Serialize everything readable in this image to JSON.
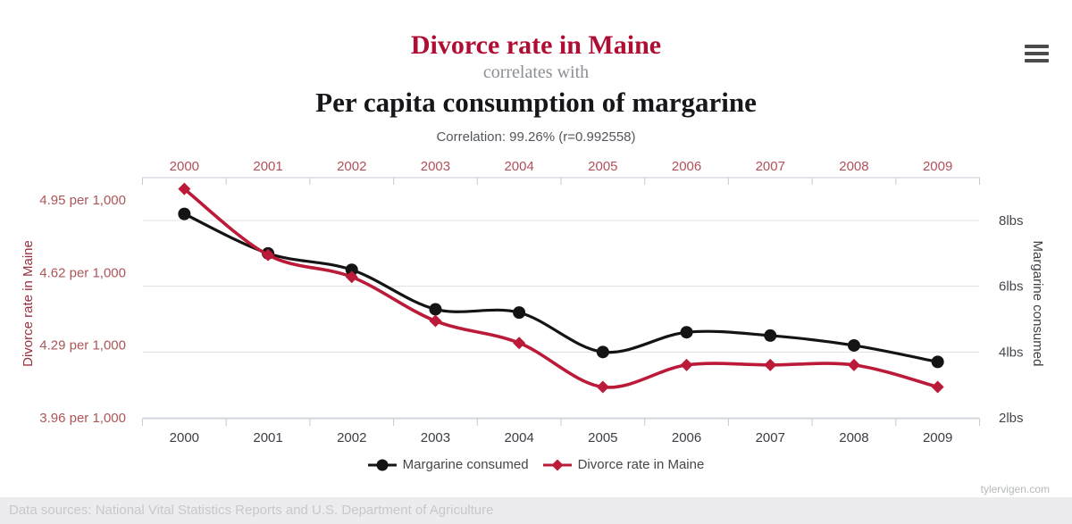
{
  "header": {
    "title": "Divorce rate in Maine",
    "connector": "correlates with",
    "subtitle": "Per capita consumption of margarine",
    "correlation": "Correlation: 99.26% (r=0.992558)"
  },
  "colors": {
    "title_red": "#b00d33",
    "series_black": "#141414",
    "series_red": "#bb1a39",
    "top_axis_label": "#b25059",
    "left_tick_label": "#ac5658",
    "left_axis_title": "#9a3140",
    "right_tick_label": "#43464b",
    "right_axis_title": "#3d4045",
    "bottom_axis_label": "#3b3e44",
    "grid_line": "#dce0e3",
    "axis_line": "#c4cdd4"
  },
  "chart_data": {
    "type": "line",
    "categories": [
      "2000",
      "2001",
      "2002",
      "2003",
      "2004",
      "2005",
      "2006",
      "2007",
      "2008",
      "2009"
    ],
    "series": [
      {
        "name": "Margarine consumed",
        "axis": "right",
        "marker": "circle",
        "color": "#141414",
        "unit": "lbs",
        "values": [
          8.2,
          7,
          6.5,
          5.3,
          5.2,
          4,
          4.6,
          4.5,
          4.2,
          3.7
        ]
      },
      {
        "name": "Divorce rate in Maine",
        "axis": "left",
        "marker": "diamond",
        "color": "#bb1a39",
        "unit": "per 1,000",
        "values": [
          5,
          4.7,
          4.6,
          4.4,
          4.3,
          4.1,
          4.2,
          4.2,
          4.2,
          4.1
        ]
      }
    ],
    "left_axis": {
      "label": "Divorce rate in Maine",
      "tick_labels": [
        "4.95 per 1,000",
        "4.62 per 1,000",
        "4.29 per 1,000",
        "3.96 per 1,000"
      ],
      "tick_values": [
        4.95,
        4.62,
        4.29,
        3.96
      ]
    },
    "right_axis": {
      "label": "Margarine consumed",
      "tick_labels": [
        "8lbs",
        "6lbs",
        "4lbs",
        "2lbs"
      ],
      "tick_values": [
        8,
        6,
        4,
        2
      ]
    },
    "x_axis": {
      "top_labels": true,
      "bottom_labels": true
    },
    "grid": "horizontal",
    "legend_position": "bottom"
  },
  "legend": {
    "items": [
      {
        "label": "Margarine consumed",
        "marker": "circle",
        "color": "#141414"
      },
      {
        "label": "Divorce rate in Maine",
        "marker": "diamond",
        "color": "#bb1a39"
      }
    ]
  },
  "footer": {
    "watermark": "tylervigen.com",
    "data_sources": "Data sources: National Vital Statistics Reports and U.S. Department of Agriculture"
  }
}
